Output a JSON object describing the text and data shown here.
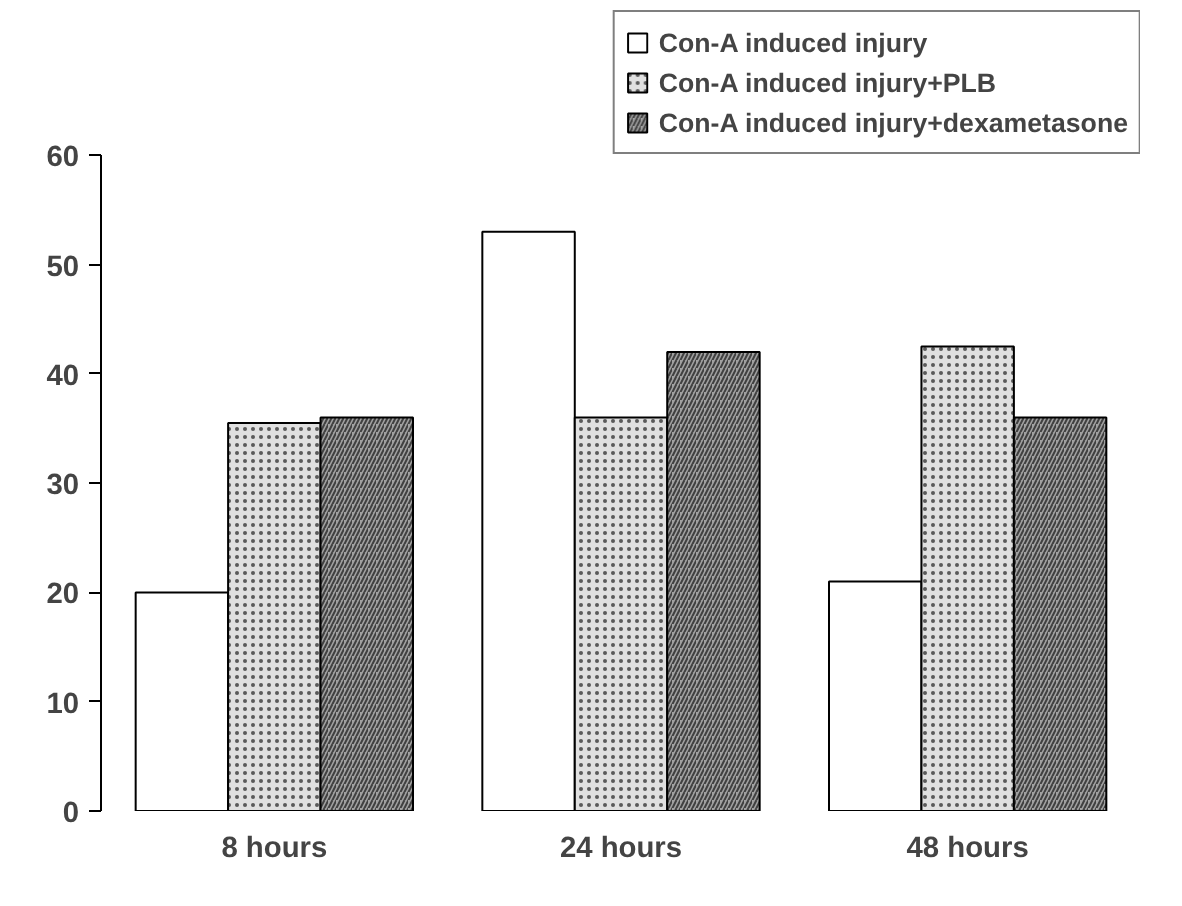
{
  "chart_data": {
    "type": "bar",
    "categories": [
      "8 hours",
      "24 hours",
      "48 hours"
    ],
    "series": [
      {
        "name": "Con-A induced injury",
        "color": "#ffffff",
        "values": [
          20,
          53,
          21
        ]
      },
      {
        "name": "Con-A induced injury+PLB",
        "color": "#e0e0e0",
        "values": [
          35.5,
          36,
          42.5
        ]
      },
      {
        "name": "Con-A induced injury+dexametasone",
        "color": "#a0a0a0",
        "values": [
          36,
          42,
          36
        ]
      }
    ],
    "ylim": [
      0,
      60
    ],
    "yticks": [
      0,
      10,
      20,
      30,
      40,
      50,
      60
    ],
    "grid": false,
    "legend": "top right"
  }
}
